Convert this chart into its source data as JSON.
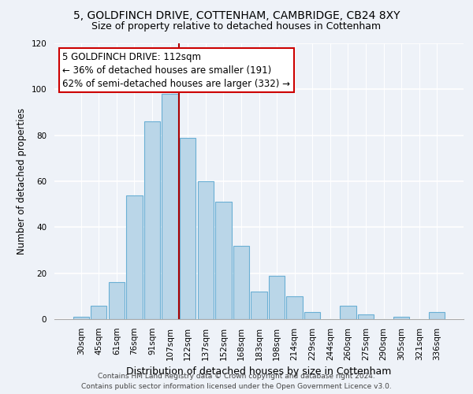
{
  "title1": "5, GOLDFINCH DRIVE, COTTENHAM, CAMBRIDGE, CB24 8XY",
  "title2": "Size of property relative to detached houses in Cottenham",
  "xlabel": "Distribution of detached houses by size in Cottenham",
  "ylabel": "Number of detached properties",
  "bar_labels": [
    "30sqm",
    "45sqm",
    "61sqm",
    "76sqm",
    "91sqm",
    "107sqm",
    "122sqm",
    "137sqm",
    "152sqm",
    "168sqm",
    "183sqm",
    "198sqm",
    "214sqm",
    "229sqm",
    "244sqm",
    "260sqm",
    "275sqm",
    "290sqm",
    "305sqm",
    "321sqm",
    "336sqm"
  ],
  "bar_values": [
    1,
    6,
    16,
    54,
    86,
    98,
    79,
    60,
    51,
    32,
    12,
    19,
    10,
    3,
    0,
    6,
    2,
    0,
    1,
    0,
    3
  ],
  "bar_color": "#bad6e8",
  "bar_edge_color": "#6aafd4",
  "vline_x": 5.5,
  "vline_color": "#aa0000",
  "annotation_title": "5 GOLDFINCH DRIVE: 112sqm",
  "annotation_line1": "← 36% of detached houses are smaller (191)",
  "annotation_line2": "62% of semi-detached houses are larger (332) →",
  "annotation_box_color": "#ffffff",
  "annotation_box_edge": "#cc0000",
  "ylim": [
    0,
    120
  ],
  "yticks": [
    0,
    20,
    40,
    60,
    80,
    100,
    120
  ],
  "footer1": "Contains HM Land Registry data © Crown copyright and database right 2024.",
  "footer2": "Contains public sector information licensed under the Open Government Licence v3.0.",
  "bg_color": "#eef2f8",
  "title1_fontsize": 10,
  "title2_fontsize": 9,
  "ylabel_fontsize": 8.5,
  "xlabel_fontsize": 9,
  "tick_fontsize": 7.5,
  "annot_fontsize": 8.5,
  "footer_fontsize": 6.5
}
